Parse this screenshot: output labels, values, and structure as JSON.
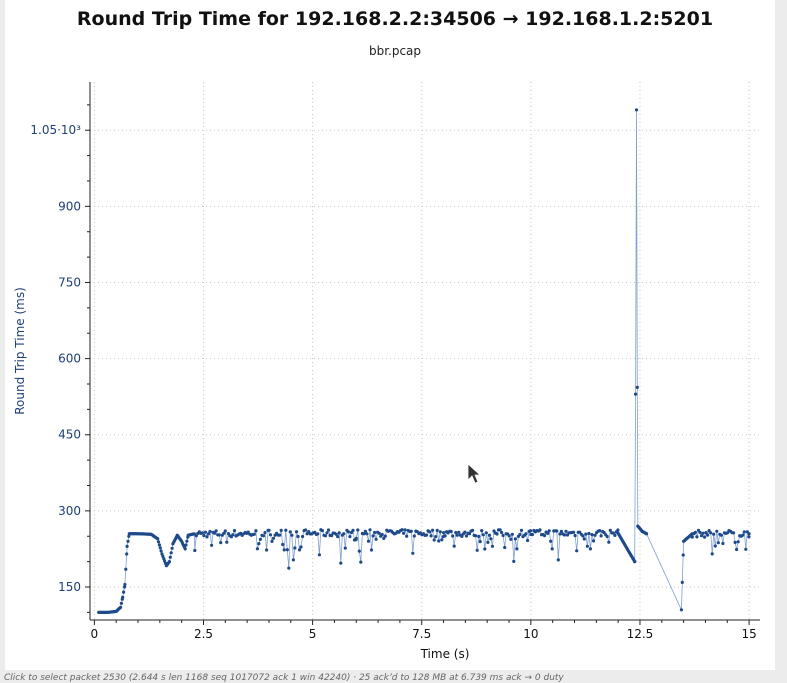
{
  "window": {
    "title": "Round Trip Time for 192.168.2.2:34506 → 192.168.1.2:5201",
    "subtitle": "bbr.pcap",
    "status_text": "Click to select packet 2530 (2.644 s len 1168 seq 1017072 ack 1 win 42240) · 25 ack’d to 128 MB at 6.739 ms ack → 0 duty"
  },
  "colors": {
    "series": "#1f4a8a",
    "line": "#7f9fd0",
    "grid": "#c8c8c8",
    "axis_text": "#1f3f77"
  },
  "icons": {
    "cursor": "mouse-pointer-icon"
  },
  "chart_data": {
    "type": "scatter",
    "title": "Round Trip Time for 192.168.2.2:34506 → 192.168.1.2:5201",
    "subtitle": "bbr.pcap",
    "xlabel": "Time (s)",
    "ylabel": "Round Trip Time (ms)",
    "xlim": [
      -0.1,
      15.25
    ],
    "ylim": [
      85,
      1145
    ],
    "x_ticks": [
      0,
      2.5,
      5,
      7.5,
      10,
      12.5,
      15
    ],
    "x_tick_labels": [
      "0",
      "2.5",
      "5",
      "7.5",
      "10",
      "12.5",
      "15"
    ],
    "y_ticks": [
      150,
      300,
      450,
      600,
      750,
      900,
      1050
    ],
    "y_tick_labels": [
      "150",
      "300",
      "450",
      "600",
      "750",
      "900",
      "1.05·10³"
    ],
    "grid": true,
    "series": [
      {
        "key_points": [
          [
            0.1,
            100
          ],
          [
            0.3,
            100
          ],
          [
            0.5,
            102
          ],
          [
            0.6,
            110
          ],
          [
            0.65,
            130
          ],
          [
            0.7,
            155
          ],
          [
            0.75,
            230
          ],
          [
            0.8,
            255
          ],
          [
            1.0,
            255
          ],
          [
            1.3,
            254
          ],
          [
            1.45,
            245
          ],
          [
            1.55,
            215
          ],
          [
            1.65,
            192
          ],
          [
            1.72,
            200
          ],
          [
            1.8,
            235
          ],
          [
            1.9,
            252
          ],
          [
            2.0,
            240
          ],
          [
            2.08,
            225
          ],
          [
            2.15,
            252
          ],
          [
            2.3,
            255
          ],
          [
            3.0,
            255
          ],
          [
            4.0,
            256
          ],
          [
            6.0,
            256
          ],
          [
            8.0,
            256
          ],
          [
            10.0,
            256
          ],
          [
            12.0,
            256
          ],
          [
            12.38,
            200
          ],
          [
            12.4,
            530
          ],
          [
            12.42,
            1090
          ],
          [
            12.45,
            270
          ],
          [
            12.55,
            260
          ],
          [
            12.65,
            255
          ],
          [
            13.45,
            105
          ],
          [
            13.5,
            240
          ],
          [
            13.7,
            255
          ],
          [
            15.0,
            255
          ]
        ]
      }
    ]
  }
}
